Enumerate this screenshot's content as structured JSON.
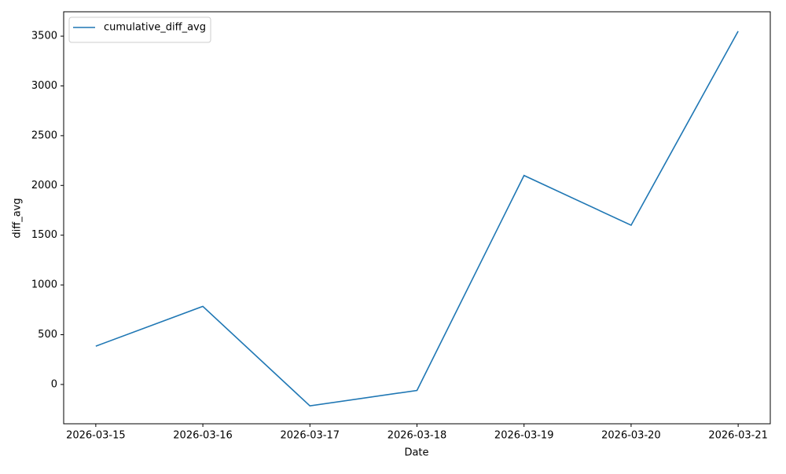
{
  "chart_data": {
    "type": "line",
    "categories": [
      "2026-03-15",
      "2026-03-16",
      "2026-03-17",
      "2026-03-18",
      "2026-03-19",
      "2026-03-20",
      "2026-03-21"
    ],
    "series": [
      {
        "name": "cumulative_diff_avg",
        "color": "#1f77b4",
        "values": [
          385,
          785,
          -215,
          -60,
          2100,
          1600,
          3550
        ]
      }
    ],
    "xlabel": "Date",
    "ylabel": "diff_avg",
    "ylim": [
      -395,
      3745
    ],
    "yticks": [
      0,
      500,
      1000,
      1500,
      2000,
      2500,
      3000,
      3500
    ],
    "legend": "upper left"
  }
}
